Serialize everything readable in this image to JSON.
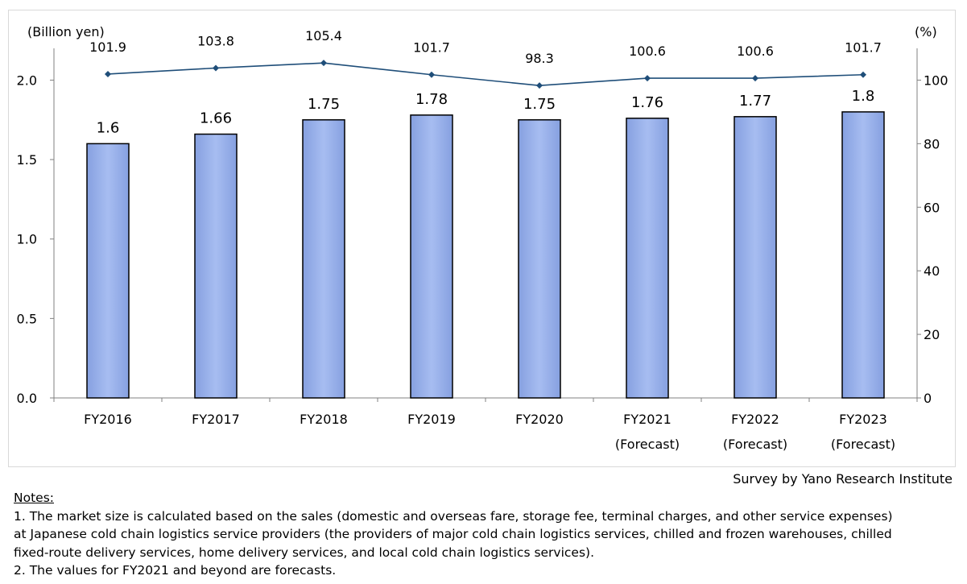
{
  "chart_data": {
    "type": "bar",
    "categories": [
      [
        "FY2016"
      ],
      [
        "FY2017"
      ],
      [
        "FY2018"
      ],
      [
        "FY2019"
      ],
      [
        "FY2020"
      ],
      [
        "FY2021",
        "(Forecast)"
      ],
      [
        "FY2022",
        "(Forecast)"
      ],
      [
        "FY2023",
        "(Forecast)"
      ]
    ],
    "series": [
      {
        "type": "bar",
        "axis": "left",
        "values": [
          1.6,
          1.66,
          1.75,
          1.78,
          1.75,
          1.76,
          1.77,
          1.8
        ]
      },
      {
        "type": "line",
        "axis": "right",
        "values": [
          101.9,
          103.8,
          105.4,
          101.7,
          98.3,
          100.6,
          100.6,
          101.7
        ]
      }
    ],
    "ylabel_left": "(Billion yen)",
    "ylabel_right": "(%)",
    "ylim_left": [
      0,
      2.2
    ],
    "yticks_left": [
      "0.0",
      "0.5",
      "1.0",
      "1.5",
      "2.0"
    ],
    "ylim_right": [
      0,
      110
    ],
    "yticks_right": [
      "0",
      "20",
      "40",
      "60",
      "80",
      "100"
    ],
    "grid": false,
    "legend": "none",
    "colors": {
      "bar_fill": "#9bb1ea",
      "bar_edge": "#000000",
      "line": "#1f4e79",
      "axis": "#808080"
    }
  },
  "source": "Survey by Yano Research Institute",
  "notes": {
    "title": "Notes:",
    "lines": [
      "1.  The market size is calculated based on the sales (domestic and overseas fare, storage fee, terminal charges, and other service expenses)",
      "at Japanese cold chain logistics service providers (the providers of major cold chain logistics services, chilled and frozen warehouses, chilled",
      "fixed-route delivery services, home delivery services, and local cold chain logistics services).",
      "2.  The values for FY2021 and beyond are forecasts."
    ]
  }
}
